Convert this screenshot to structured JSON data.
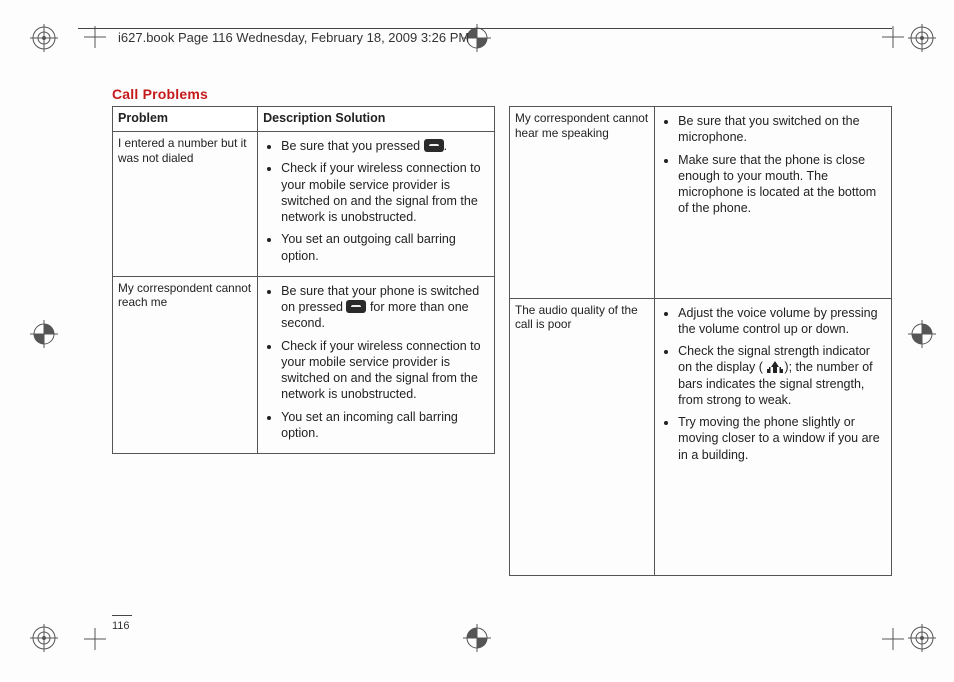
{
  "header": {
    "text": "i627.book  Page 116  Wednesday, February 18, 2009  3:26 PM"
  },
  "section_title": "Call Problems",
  "table": {
    "headers": {
      "problem": "Problem",
      "solution": "Description Solution"
    },
    "rows_left": [
      {
        "problem": "I entered a number but it was not dialed",
        "solutions": [
          {
            "pre": "Be sure that you pressed ",
            "icon": "key",
            "post": "."
          },
          {
            "text": "Check if your wireless connection to your mobile service provider is switched on and the signal from the network is unobstructed."
          },
          {
            "text": "You set an outgoing call barring option."
          }
        ]
      },
      {
        "problem": "My correspondent cannot reach me",
        "solutions": [
          {
            "pre": "Be sure that your phone is switched on pressed ",
            "icon": "key",
            "post": " for more than one second."
          },
          {
            "text": "Check if your wireless connection to your mobile service provider is switched on and the signal from the network is unobstructed."
          },
          {
            "text": "You set an incoming call barring option."
          }
        ]
      }
    ],
    "rows_right": [
      {
        "problem": "My correspondent cannot hear me speaking",
        "solutions": [
          {
            "text": "Be sure that you switched on the microphone."
          },
          {
            "text": "Make sure that the phone is close enough to your mouth. The microphone is located at the bottom of the phone."
          }
        ]
      },
      {
        "problem": "The audio quality of the call is poor",
        "solutions": [
          {
            "text": "Adjust the voice volume by pressing the volume control up or down."
          },
          {
            "pre": "Check the signal strength indicator on the display ( ",
            "icon": "signal",
            "post": "); the number of bars indicates the signal strength, from strong to weak."
          },
          {
            "text": "Try moving the phone slightly or moving closer to a window if you are in a building."
          }
        ]
      }
    ]
  },
  "page_number": "116",
  "colors": {
    "title": "#c61a1a",
    "rule": "#444444",
    "text": "#222222"
  }
}
